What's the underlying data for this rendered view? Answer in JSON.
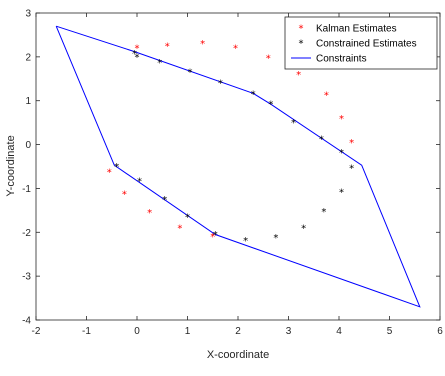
{
  "chart_data": {
    "type": "scatter",
    "xlabel": "X-coordinate",
    "ylabel": "Y-coordinate",
    "xlim": [
      -2,
      6
    ],
    "ylim": [
      -4,
      3
    ],
    "xticks": [
      "-2",
      "-1",
      "0",
      "1",
      "2",
      "3",
      "4",
      "5",
      "6"
    ],
    "yticks": [
      "-4",
      "-3",
      "-2",
      "-1",
      "0",
      "1",
      "2",
      "3"
    ],
    "grid": false,
    "legend_position": "top-right",
    "series": [
      {
        "name": "Kalman Estimates",
        "kind": "markers",
        "marker": "*",
        "color": "#ff0000",
        "points": [
          [
            0.0,
            2.2
          ],
          [
            0.6,
            2.25
          ],
          [
            1.3,
            2.3
          ],
          [
            1.95,
            2.2
          ],
          [
            2.6,
            1.97
          ],
          [
            3.2,
            1.6
          ],
          [
            3.75,
            1.13
          ],
          [
            4.05,
            0.6
          ],
          [
            4.25,
            0.05
          ],
          [
            -0.55,
            -0.62
          ],
          [
            -0.25,
            -1.13
          ],
          [
            0.25,
            -1.55
          ],
          [
            0.85,
            -1.9
          ],
          [
            1.5,
            -2.1
          ]
        ]
      },
      {
        "name": "Constrained Estimates",
        "kind": "markers",
        "marker": "*",
        "color": "#000000",
        "points": [
          [
            -0.05,
            2.08
          ],
          [
            0.0,
            2.0
          ],
          [
            0.45,
            1.87
          ],
          [
            1.05,
            1.65
          ],
          [
            1.65,
            1.4
          ],
          [
            2.3,
            1.15
          ],
          [
            2.65,
            0.92
          ],
          [
            3.1,
            0.5
          ],
          [
            3.65,
            0.13
          ],
          [
            4.05,
            -0.18
          ],
          [
            4.25,
            -0.53
          ],
          [
            4.05,
            -1.08
          ],
          [
            3.7,
            -1.53
          ],
          [
            3.3,
            -1.9
          ],
          [
            2.75,
            -2.12
          ],
          [
            2.15,
            -2.19
          ],
          [
            1.55,
            -2.05
          ],
          [
            1.0,
            -1.65
          ],
          [
            0.55,
            -1.25
          ],
          [
            0.05,
            -0.83
          ],
          [
            -0.4,
            -0.5
          ]
        ]
      },
      {
        "name": "Constraints",
        "kind": "line",
        "color": "#0000ff",
        "points": [
          [
            -1.6,
            2.7
          ],
          [
            -0.05,
            2.12
          ],
          [
            2.3,
            1.17
          ],
          [
            2.65,
            0.92
          ],
          [
            4.45,
            -0.47
          ],
          [
            5.6,
            -3.7
          ],
          [
            1.55,
            -2.05
          ],
          [
            -0.45,
            -0.47
          ],
          [
            -1.6,
            2.7
          ]
        ]
      }
    ]
  }
}
